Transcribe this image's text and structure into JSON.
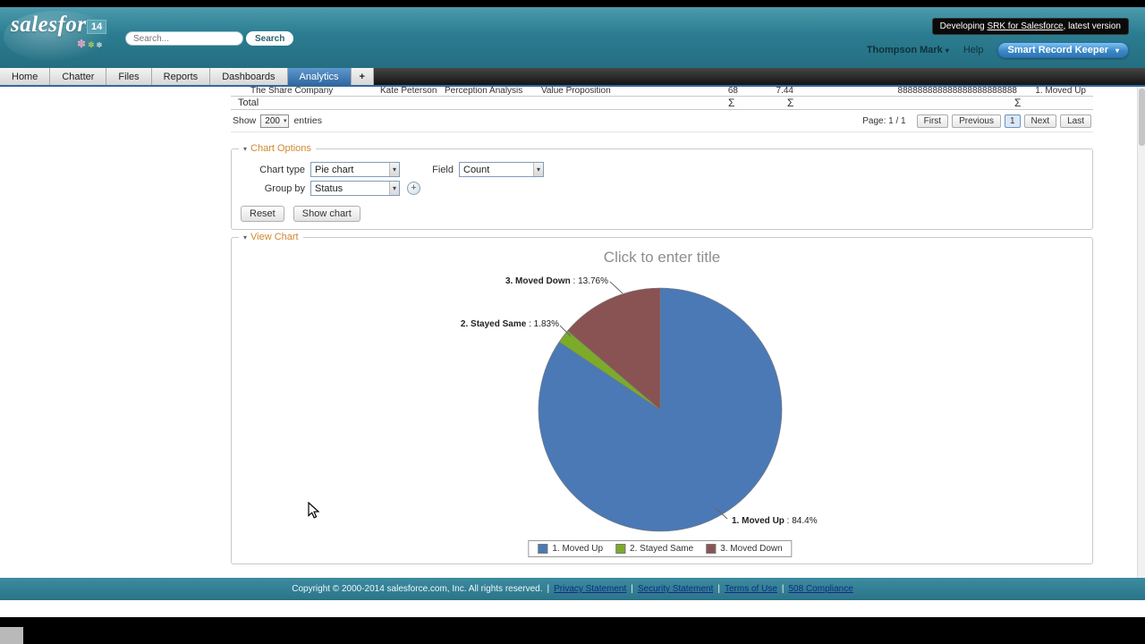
{
  "icons": {
    "triangle_down": "▾",
    "plus": "+",
    "flower_pink": "✽",
    "flower_green": "✽",
    "flower_white": "✼"
  },
  "tooltip": {
    "prefix": "Developing ",
    "link": "SRK for Salesforce",
    "suffix": ", latest version"
  },
  "header": {
    "logo_text": "salesforce",
    "version_badge": "14",
    "search_placeholder": "Search...",
    "search_button": "Search",
    "user_name": "Thompson Mark",
    "help_label": "Help",
    "app_button": "Smart Record Keeper"
  },
  "tabs": {
    "items": [
      "Home",
      "Chatter",
      "Files",
      "Reports",
      "Dashboards",
      "Analytics"
    ],
    "add_tab": "+"
  },
  "table": {
    "row": [
      "The Share Company",
      "Kate Peterson",
      "Perception Analysis",
      "Value Proposition",
      "68",
      "7.44",
      "888888888888888888888888",
      "1. Moved Up"
    ],
    "total_label": "Total",
    "sum_symbol": "Σ"
  },
  "pagination": {
    "show_label": "Show",
    "page_size": "200",
    "entries_label": "entries",
    "page_status": "Page: 1 / 1",
    "first": "First",
    "previous": "Previous",
    "current_page": "1",
    "next": "Next",
    "last": "Last"
  },
  "chart_options": {
    "section_title": "Chart Options",
    "chart_type_label": "Chart type",
    "chart_type_value": "Pie chart",
    "field_label": "Field",
    "field_value": "Count",
    "group_by_label": "Group by",
    "group_by_value": "Status",
    "reset_button": "Reset",
    "show_chart_button": "Show chart"
  },
  "view_chart": {
    "section_title": "View Chart",
    "title_placeholder": "Click to enter title"
  },
  "chart_data": {
    "type": "pie",
    "title": "Click to enter title",
    "categories": [
      "1. Moved Up",
      "2. Stayed Same",
      "3. Moved Down"
    ],
    "values": [
      84.4,
      1.83,
      13.76
    ],
    "display_pcts": [
      "84.4%",
      "1.83%",
      "13.76%"
    ],
    "label_separator": " : ",
    "colors": [
      "#4a79b5",
      "#7cab29",
      "#8a5353"
    ],
    "start_angle": "top",
    "direction": "clockwise",
    "legend_position": "bottom"
  },
  "footer": {
    "copyright": "Copyright © 2000-2014 salesforce.com, Inc. All rights reserved.",
    "separator": "|",
    "links": [
      "Privacy Statement",
      "Security Statement",
      "Terms of Use",
      "508 Compliance"
    ]
  }
}
